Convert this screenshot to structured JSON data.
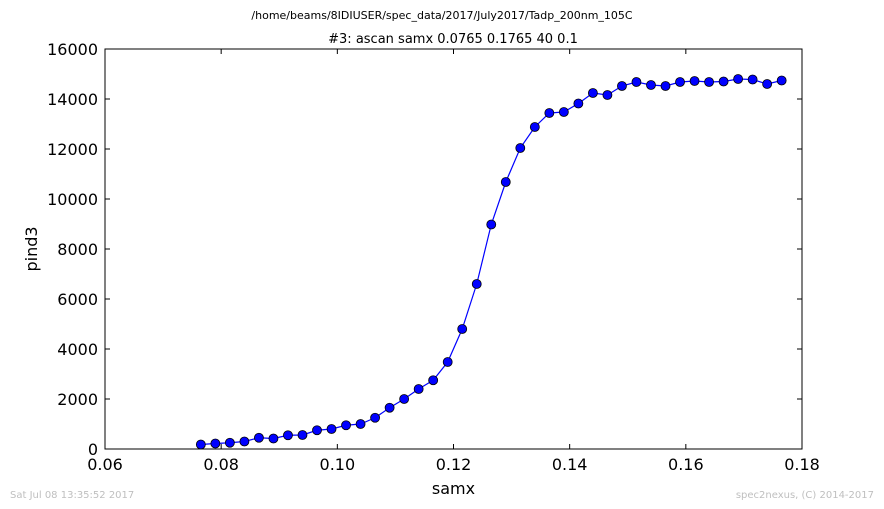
{
  "suptitle": "/home/beams/8IDIUSER/spec_data/2017/July2017/Tadp_200nm_105C",
  "footer_left": "Sat Jul 08 13:35:52 2017",
  "footer_right": "spec2nexus, (C) 2014-2017",
  "chart_data": {
    "type": "line",
    "title": "#3: ascan  samx 0.0765 0.1765  40 0.1",
    "xlabel": "samx",
    "ylabel": "pind3",
    "xlim": [
      0.06,
      0.18
    ],
    "ylim": [
      0,
      16000
    ],
    "xticks": [
      "0.06",
      "0.08",
      "0.10",
      "0.12",
      "0.14",
      "0.16",
      "0.18"
    ],
    "yticks": [
      "0",
      "2000",
      "4000",
      "6000",
      "8000",
      "10000",
      "12000",
      "14000",
      "16000"
    ],
    "grid": false,
    "line_color": "#0000ff",
    "marker": "circle",
    "series": [
      {
        "x": [
          0.0765,
          0.079,
          0.0815,
          0.084,
          0.0865,
          0.089,
          0.0915,
          0.094,
          0.0965,
          0.099,
          0.1015,
          0.104,
          0.1065,
          0.109,
          0.1115,
          0.114,
          0.1165,
          0.119,
          0.1215,
          0.124,
          0.1265,
          0.129,
          0.1315,
          0.134,
          0.1365,
          0.139,
          0.1415,
          0.144,
          0.1465,
          0.149,
          0.1515,
          0.154,
          0.1565,
          0.159,
          0.1615,
          0.164,
          0.1665,
          0.169,
          0.1715,
          0.174,
          0.1765
        ],
        "y": [
          180,
          220,
          250,
          300,
          450,
          420,
          550,
          560,
          750,
          800,
          950,
          1000,
          1250,
          1650,
          2000,
          2400,
          2750,
          3480,
          4800,
          6600,
          8980,
          10680,
          12040,
          12880,
          13440,
          13480,
          13820,
          14240,
          14160,
          14520,
          14680,
          14560,
          14520,
          14680,
          14720,
          14680,
          14700,
          14800,
          14780,
          14600,
          14740
        ]
      }
    ]
  }
}
